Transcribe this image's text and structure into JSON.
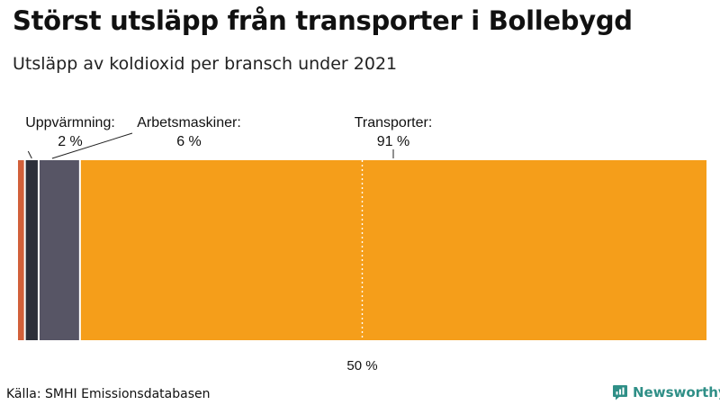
{
  "title": "Störst utsläpp från transporter i Bollebygd",
  "subtitle": "Utsläpp av koldioxid per bransch under 2021",
  "source": "Källa: SMHI Emissionsdatabasen",
  "brand": {
    "name": "Newsworthy",
    "color": "#2f8f87",
    "icon": "newsworthy-logo-icon"
  },
  "chart_data": {
    "type": "bar",
    "orientation": "horizontal-stacked-100",
    "xlim": [
      0,
      100
    ],
    "reference_line": {
      "value": 50,
      "label": "50 %",
      "style": "dotted"
    },
    "segments": [
      {
        "value": 1,
        "color": "#d2603a",
        "label": "",
        "value_label": ""
      },
      {
        "value": 2,
        "color": "#2c2f3a",
        "label": "Uppvärmning:",
        "value_label": "2 %"
      },
      {
        "value": 6,
        "color": "#575565",
        "label": "Arbetsmaskiner:",
        "value_label": "6 %"
      },
      {
        "value": 91,
        "color": "#f59e1a",
        "label": "Transporter:",
        "value_label": "91 %"
      }
    ]
  }
}
